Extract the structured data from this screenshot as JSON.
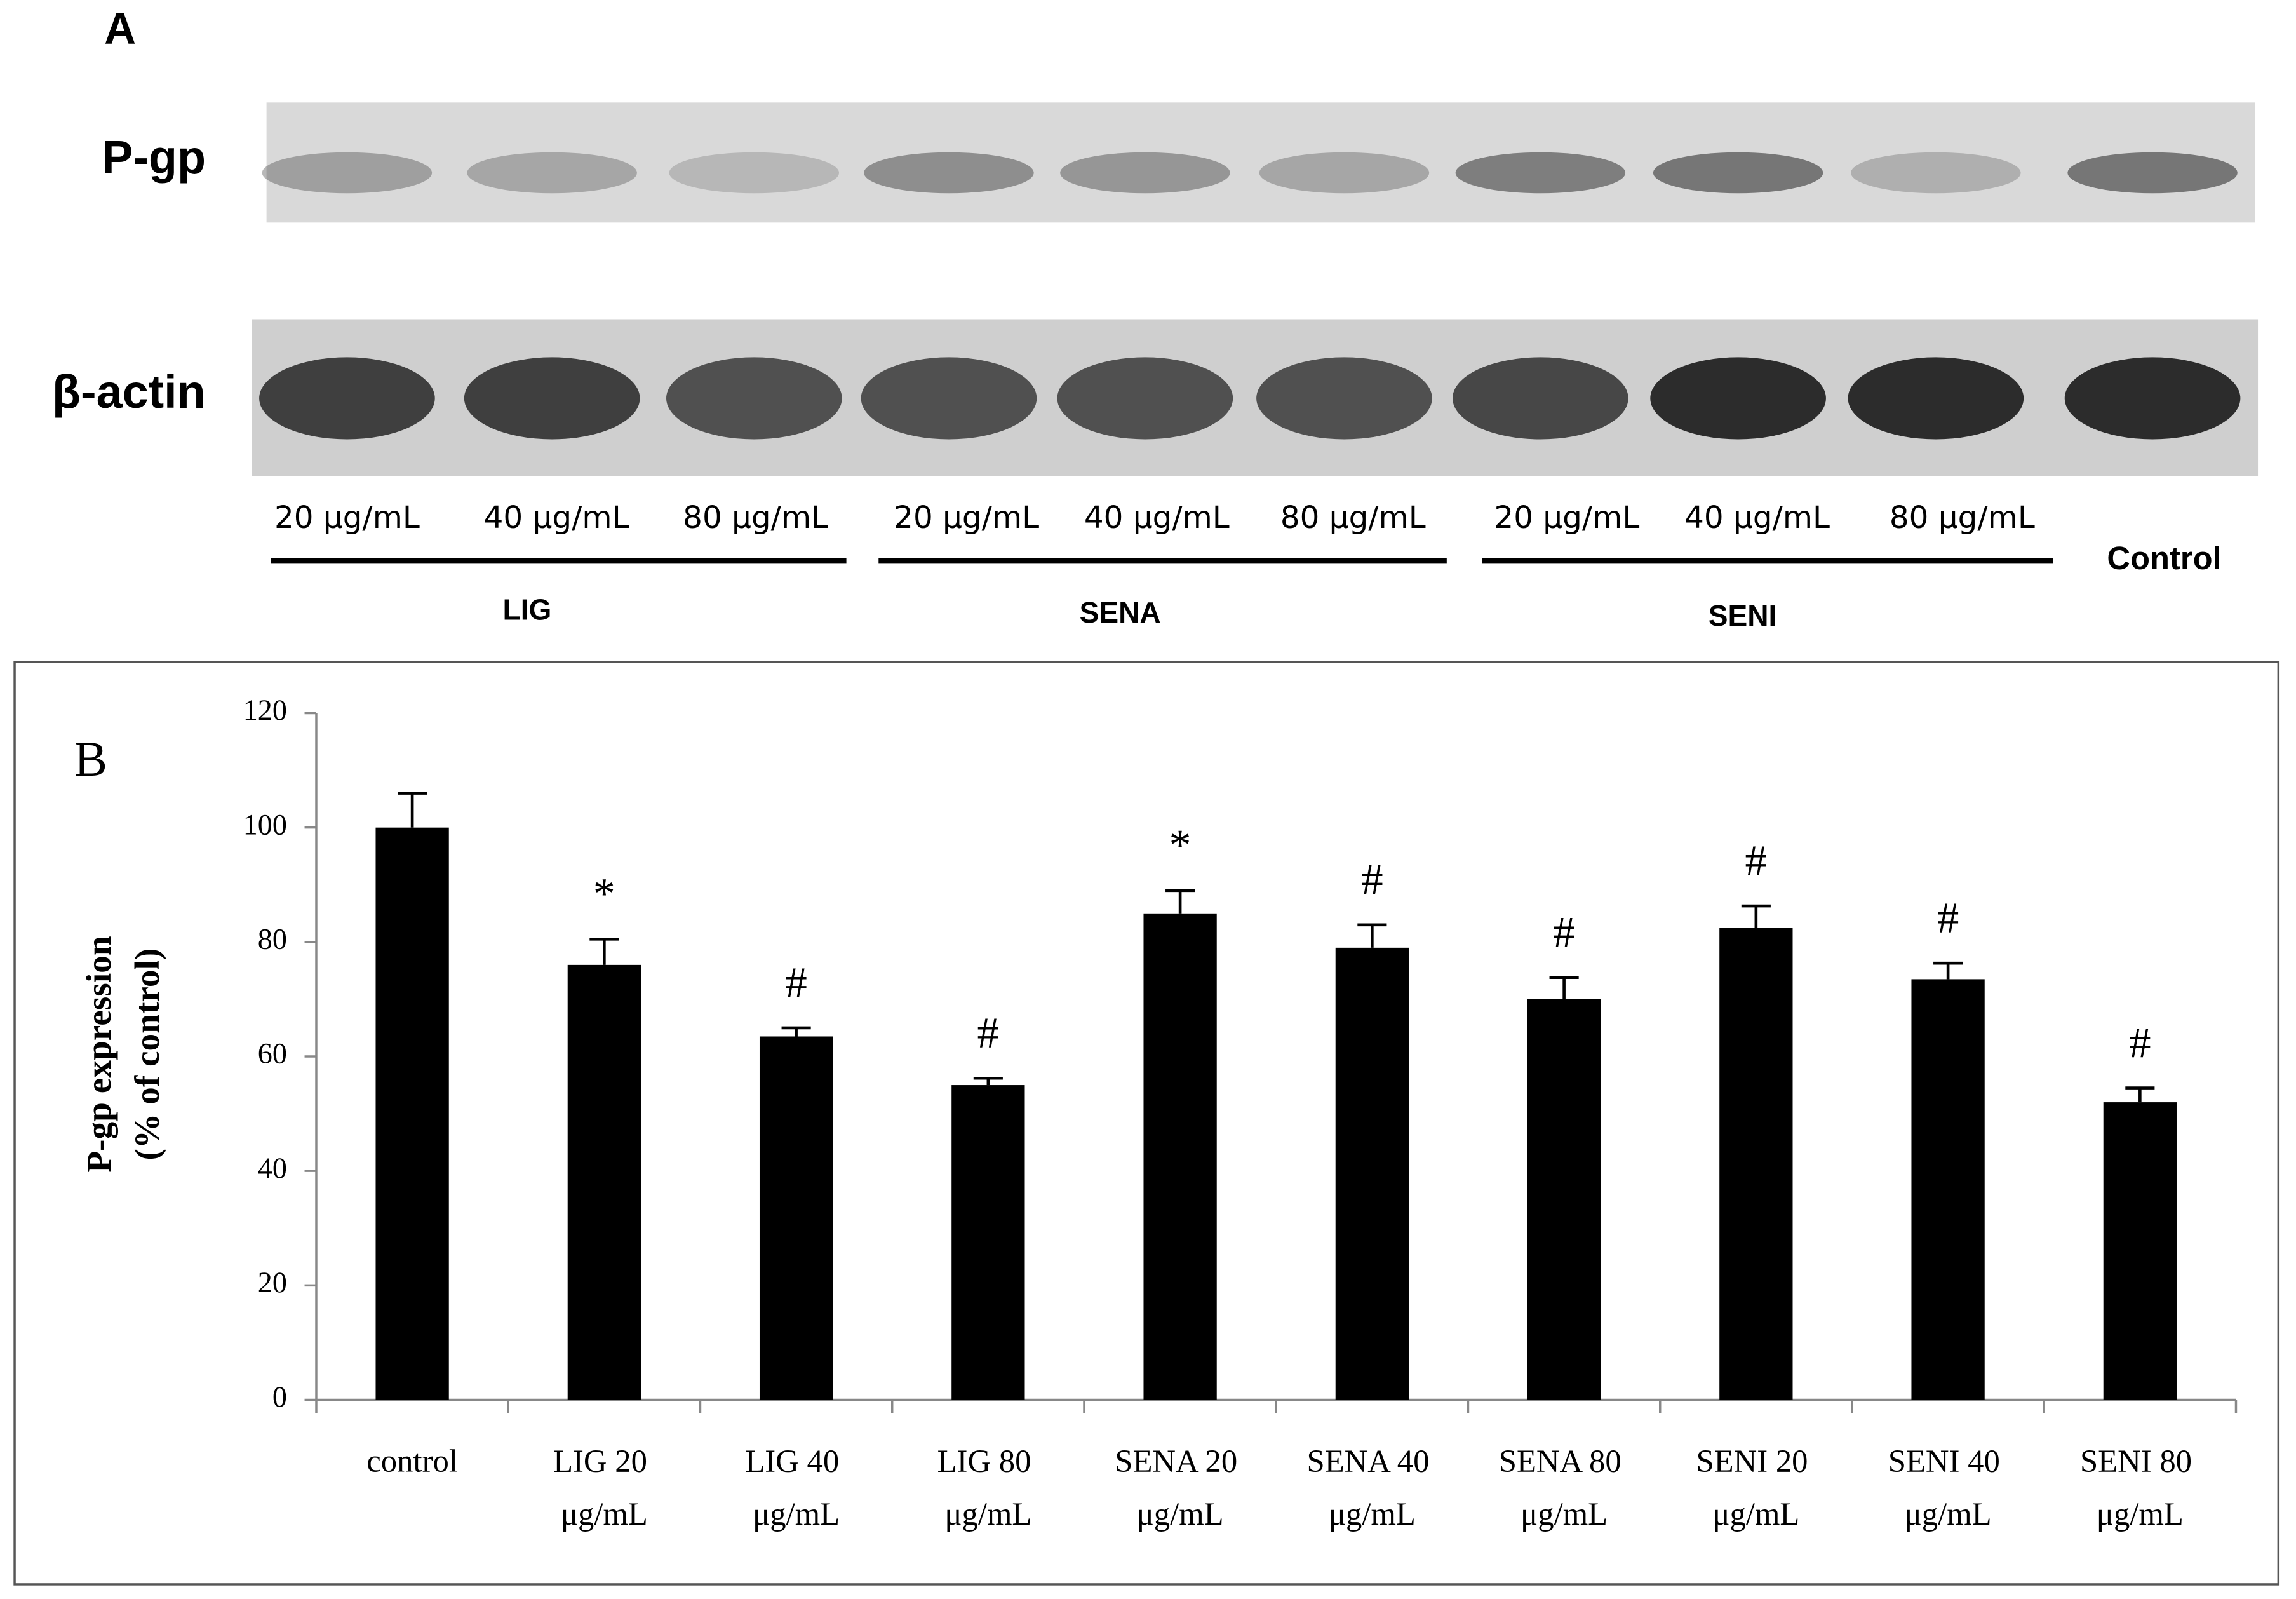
{
  "panel_a": {
    "label": "A",
    "rows": [
      "P-gp",
      "β-actin"
    ],
    "lanes": [
      "20 μg/mL",
      "40 μg/mL",
      "80 μg/mL",
      "20 μg/mL",
      "40 μg/mL",
      "80 μg/mL",
      "20 μg/mL",
      "40 μg/mL",
      "80 μg/mL"
    ],
    "groups": [
      "LIG",
      "SENA",
      "SENI"
    ],
    "control": "Control"
  },
  "chart_data": {
    "type": "bar",
    "panel_label": "B",
    "y_label_lines": [
      "P-gp expression",
      "(% of control)"
    ],
    "categories": [
      "control",
      "LIG 20 μg/mL",
      "LIG 40 μg/mL",
      "LIG 80 μg/mL",
      "SENA 20 μg/mL",
      "SENA 40 μg/mL",
      "SENA 80 μg/mL",
      "SENI 20 μg/mL",
      "SENI 40 μg/mL",
      "SENI 80 μg/mL"
    ],
    "values": [
      100,
      76,
      63.5,
      55,
      85,
      79,
      70,
      82.5,
      73.5,
      52
    ],
    "errors": [
      6,
      4.5,
      1.5,
      1.2,
      4,
      4,
      3.8,
      3.8,
      2.8,
      2.5
    ],
    "annotations": [
      null,
      "*",
      "#",
      "#",
      "*",
      "#",
      "#",
      "#",
      "#",
      "#"
    ],
    "color": "#000000",
    "ylim": [
      0,
      120
    ],
    "yticks": [
      0,
      20,
      40,
      60,
      80,
      100,
      120
    ]
  }
}
